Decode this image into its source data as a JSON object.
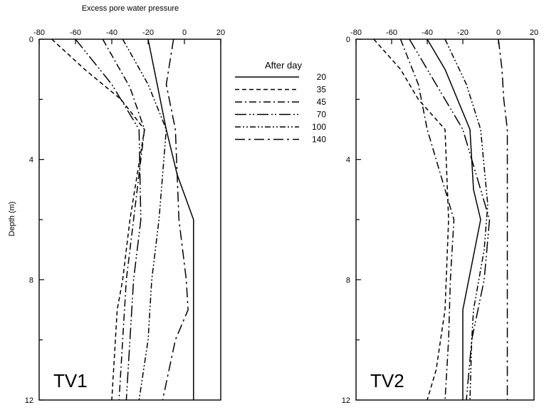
{
  "chart_data": {
    "type": "line",
    "xlabel": "Excess pore water pressure",
    "ylabel": "Depth (m)",
    "xlim": [
      -80,
      20
    ],
    "ylim": [
      12,
      0
    ],
    "xticks": [
      -80,
      -60,
      -40,
      -20,
      0,
      20
    ],
    "yticks": [
      0,
      4,
      8,
      12
    ],
    "legend": {
      "title": "After day",
      "position": "between-panels",
      "entries": [
        {
          "label": "20",
          "style": "solid"
        },
        {
          "label": "35",
          "style": "dashed"
        },
        {
          "label": "45",
          "style": "dash-dot"
        },
        {
          "label": "70",
          "style": "long-dash-dot-dot"
        },
        {
          "label": "100",
          "style": "dash-dot-dot"
        },
        {
          "label": "140",
          "style": "long-dash-dot"
        }
      ]
    },
    "panels": [
      {
        "label": "TV1",
        "series": [
          {
            "name": "20",
            "style": "solid",
            "points": [
              [
                -20,
                0
              ],
              [
                -10,
                3
              ],
              [
                -4,
                4.5
              ],
              [
                5,
                6
              ],
              [
                5,
                12
              ]
            ]
          },
          {
            "name": "35",
            "style": "dashed",
            "points": [
              [
                -73,
                0
              ],
              [
                -55,
                1
              ],
              [
                -35,
                2
              ],
              [
                -22,
                3
              ],
              [
                -30,
                6
              ],
              [
                -34,
                8
              ],
              [
                -37,
                9
              ],
              [
                -40,
                12
              ]
            ]
          },
          {
            "name": "45",
            "style": "dash-dot",
            "points": [
              [
                -45,
                0
              ],
              [
                -30,
                1.6
              ],
              [
                -22,
                3
              ],
              [
                -28,
                6
              ],
              [
                -32,
                8
              ],
              [
                -34,
                10
              ],
              [
                -36,
                12
              ]
            ]
          },
          {
            "name": "70",
            "style": "long-dash-dot-dot",
            "points": [
              [
                -60,
                0
              ],
              [
                -40,
                1.5
              ],
              [
                -25,
                3
              ],
              [
                -24,
                6
              ],
              [
                -28,
                8
              ],
              [
                -30,
                10
              ],
              [
                -32,
                12
              ]
            ]
          },
          {
            "name": "100",
            "style": "dash-dot-dot",
            "points": [
              [
                -34,
                0
              ],
              [
                -20,
                1.5
              ],
              [
                -10,
                3
              ],
              [
                -14,
                6
              ],
              [
                -18,
                8
              ],
              [
                -20,
                10
              ],
              [
                -25,
                12
              ]
            ]
          },
          {
            "name": "140",
            "style": "long-dash-dot",
            "points": [
              [
                -6,
                0
              ],
              [
                -10,
                1.5
              ],
              [
                -5,
                3
              ],
              [
                -3,
                6
              ],
              [
                1,
                8
              ],
              [
                2,
                9
              ],
              [
                -5,
                10
              ],
              [
                -12,
                12
              ]
            ]
          }
        ]
      },
      {
        "label": "TV2",
        "series": [
          {
            "name": "20",
            "style": "solid",
            "points": [
              [
                -40,
                0
              ],
              [
                -30,
                1
              ],
              [
                -16,
                3
              ],
              [
                -14,
                5
              ],
              [
                -10,
                6
              ],
              [
                -20,
                9
              ],
              [
                -20,
                12
              ]
            ]
          },
          {
            "name": "35",
            "style": "dashed",
            "points": [
              [
                -70,
                0
              ],
              [
                -55,
                1
              ],
              [
                -45,
                2
              ],
              [
                -30,
                3
              ],
              [
                -28,
                6
              ],
              [
                -30,
                9
              ],
              [
                -35,
                11
              ],
              [
                -40,
                12
              ]
            ]
          },
          {
            "name": "45",
            "style": "dash-dot",
            "points": [
              [
                -55,
                0
              ],
              [
                -45,
                1.5
              ],
              [
                -40,
                3
              ],
              [
                -25,
                6
              ],
              [
                -27,
                8
              ],
              [
                -28,
                10
              ],
              [
                -30,
                12
              ]
            ]
          },
          {
            "name": "70",
            "style": "long-dash-dot-dot",
            "points": [
              [
                -50,
                0
              ],
              [
                -40,
                1
              ],
              [
                -20,
                3
              ],
              [
                -5,
                6
              ],
              [
                -8,
                8
              ],
              [
                -15,
                10
              ],
              [
                -18,
                12
              ]
            ]
          },
          {
            "name": "100",
            "style": "dash-dot-dot",
            "points": [
              [
                -30,
                0
              ],
              [
                -18,
                1.5
              ],
              [
                -10,
                3
              ],
              [
                -6,
                5.5
              ],
              [
                -8,
                7
              ],
              [
                -14,
                9
              ],
              [
                -15,
                10
              ],
              [
                -16,
                12
              ]
            ]
          },
          {
            "name": "140",
            "style": "long-dash-dot",
            "points": [
              [
                0,
                0
              ],
              [
                2,
                1
              ],
              [
                3,
                2
              ],
              [
                5,
                3
              ],
              [
                5,
                12
              ]
            ]
          }
        ]
      }
    ]
  }
}
